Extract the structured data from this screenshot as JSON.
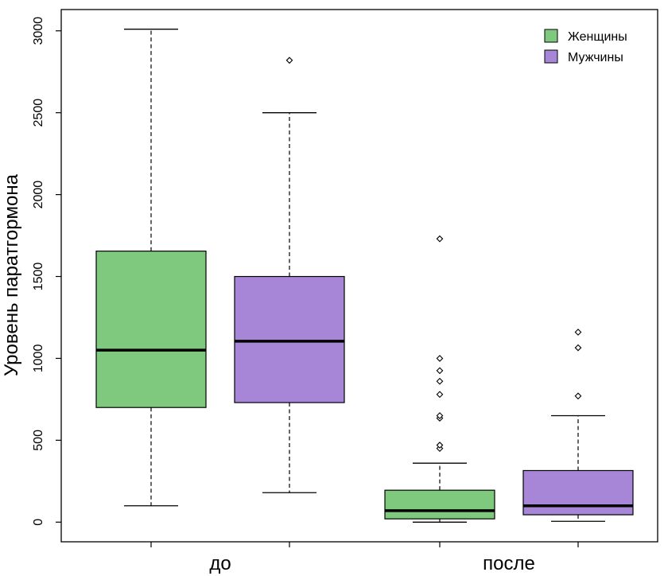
{
  "chart_data": {
    "type": "boxplot",
    "ylabel": "Уровень паратгормона",
    "ylim": [
      -120,
      3130
    ],
    "yticks": [
      0,
      500,
      1000,
      1500,
      2000,
      2500,
      3000
    ],
    "ytick_labels": [
      "0",
      "500",
      "1000",
      "1500",
      "2000",
      "2500",
      "3000"
    ],
    "categories": [
      "до",
      "после"
    ],
    "legend": {
      "position": "top-right"
    },
    "series": [
      {
        "name": "Женщины",
        "color": "#7FC97F",
        "boxes": [
          {
            "category": "до",
            "whisker_low": 100,
            "q1": 700,
            "median": 1050,
            "q3": 1655,
            "whisker_high": 3010,
            "outliers": []
          },
          {
            "category": "после",
            "whisker_low": 0,
            "q1": 20,
            "median": 70,
            "q3": 195,
            "whisker_high": 360,
            "outliers": [
              450,
              470,
              635,
              650,
              780,
              860,
              925,
              1000,
              1730
            ]
          }
        ]
      },
      {
        "name": "Мужчины",
        "color": "#A786D7",
        "boxes": [
          {
            "category": "до",
            "whisker_low": 180,
            "q1": 730,
            "median": 1105,
            "q3": 1500,
            "whisker_high": 2500,
            "outliers": [
              2820
            ]
          },
          {
            "category": "после",
            "whisker_low": 5,
            "q1": 45,
            "median": 100,
            "q3": 315,
            "whisker_high": 650,
            "outliers": [
              770,
              1065,
              1160
            ]
          }
        ]
      }
    ]
  }
}
